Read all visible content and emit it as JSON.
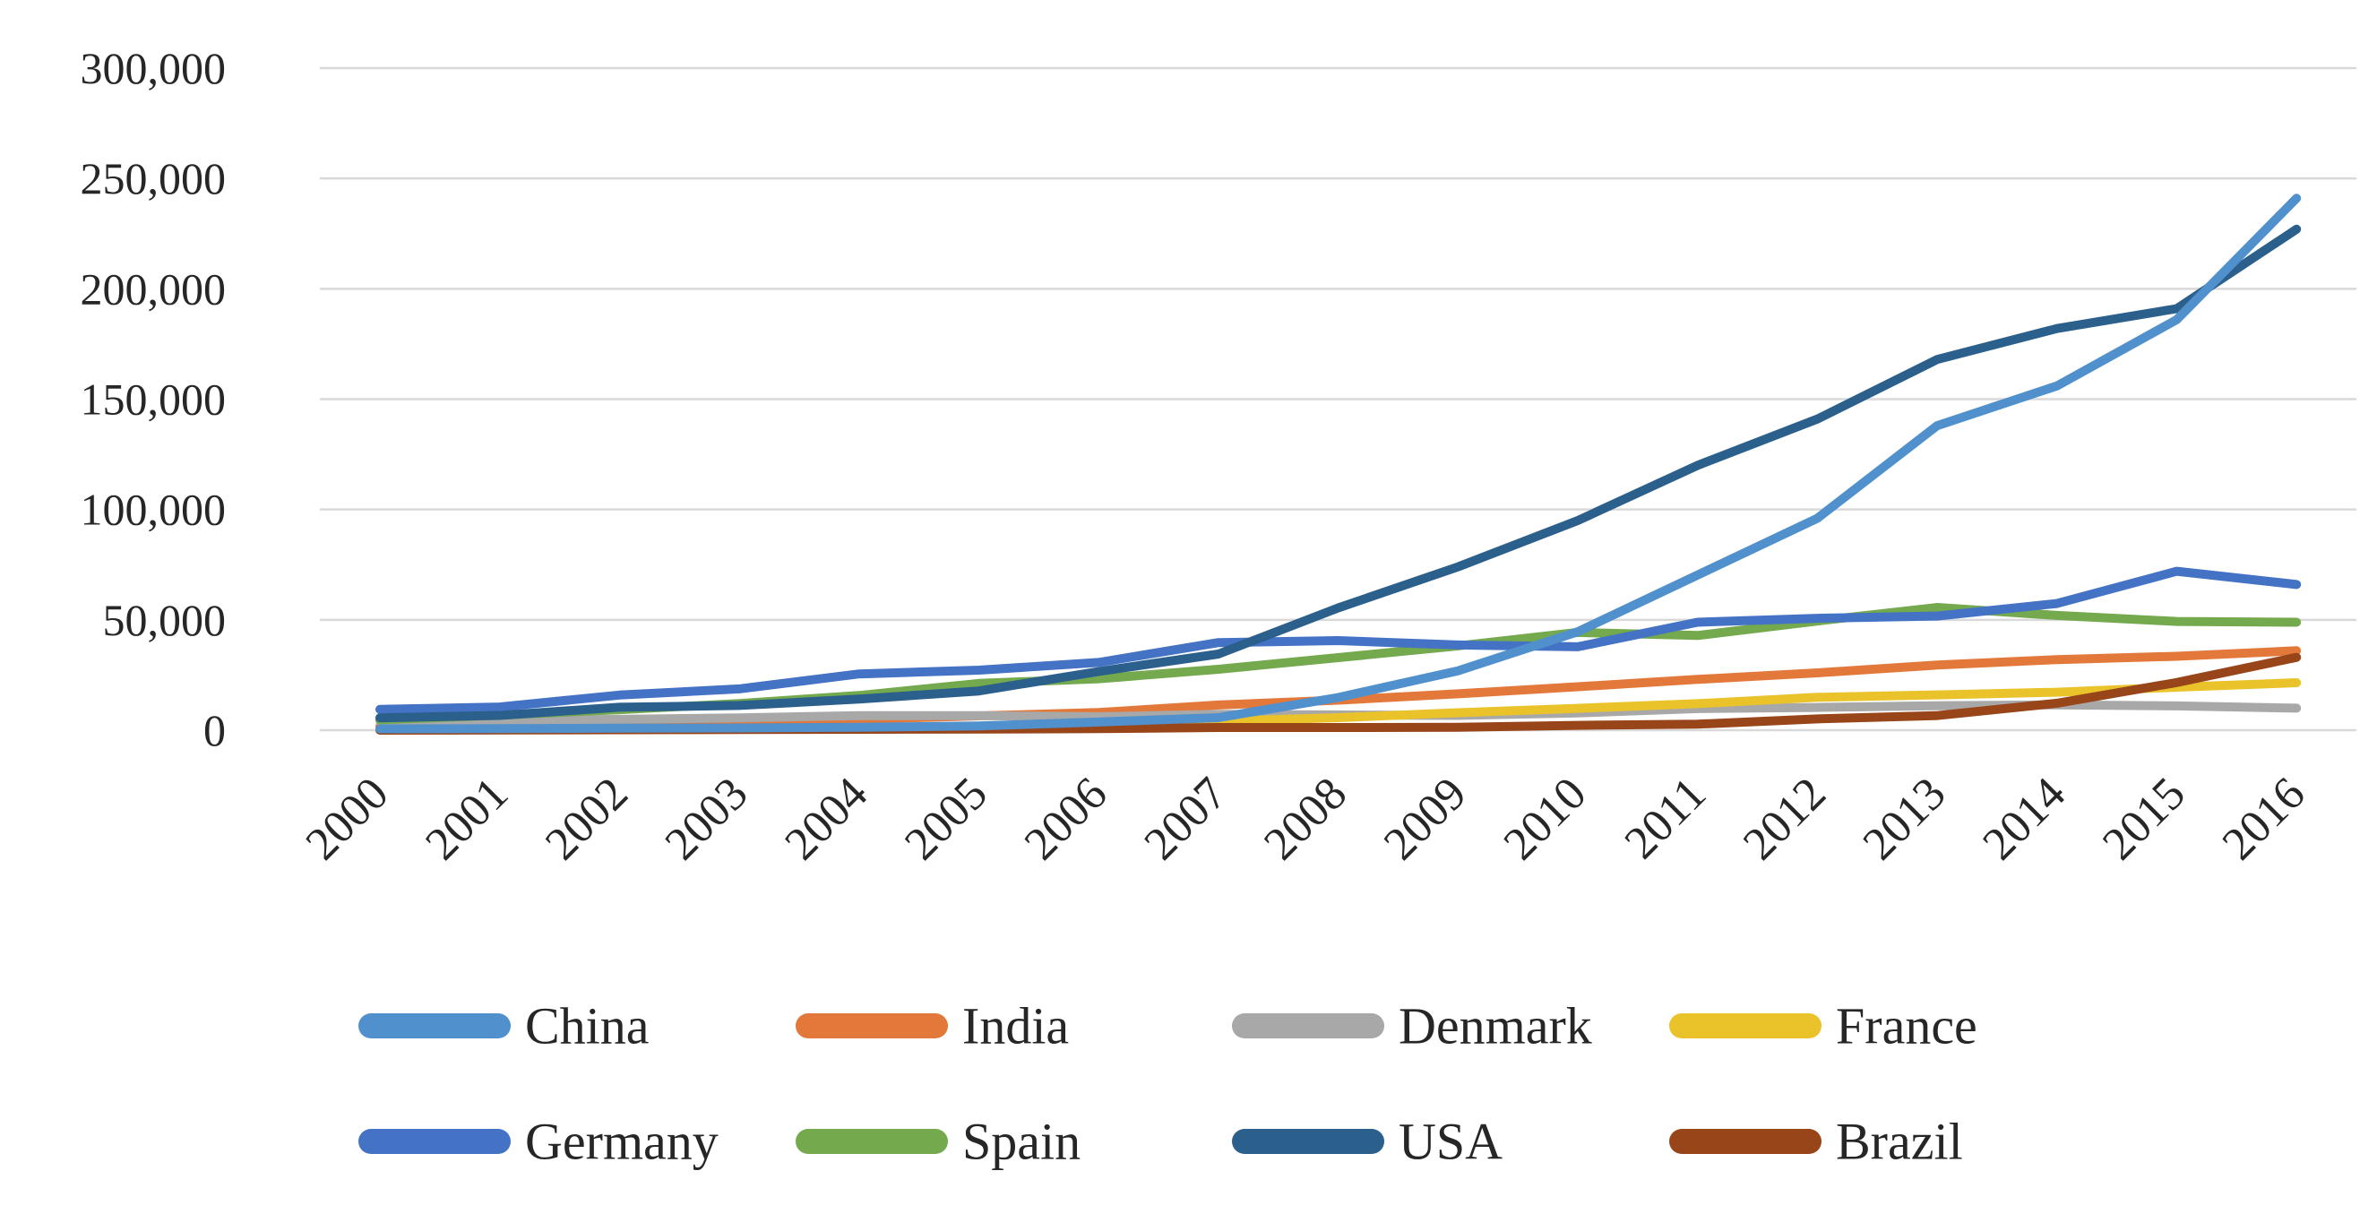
{
  "chart_data": {
    "type": "line",
    "title": "",
    "xlabel": "",
    "ylabel": "",
    "x_categories": [
      "2000",
      "2001",
      "2002",
      "2003",
      "2004",
      "2005",
      "2006",
      "2007",
      "2008",
      "2009",
      "2010",
      "2011",
      "2012",
      "2013",
      "2014",
      "2015",
      "2016"
    ],
    "y_axis": {
      "min": 0,
      "max": 300000,
      "step": 50000,
      "grid": true,
      "ticks": [
        {
          "value": 300000,
          "label": "300,000"
        },
        {
          "value": 250000,
          "label": "250,000"
        },
        {
          "value": 200000,
          "label": "200,000"
        },
        {
          "value": 150000,
          "label": "150,000"
        },
        {
          "value": 100000,
          "label": "100,000"
        },
        {
          "value": 50000,
          "label": "50,000"
        },
        {
          "value": 0,
          "label": "0"
        }
      ]
    },
    "series": [
      {
        "name": "China",
        "color": "#5090CC",
        "values": [
          600,
          700,
          900,
          1000,
          1300,
          1900,
          3700,
          5700,
          14800,
          26900,
          44600,
          70300,
          96000,
          138000,
          156000,
          186000,
          241000
        ]
      },
      {
        "name": "India",
        "color": "#E2793B",
        "values": [
          1700,
          2000,
          2100,
          3400,
          5000,
          6500,
          8000,
          11400,
          13600,
          16500,
          19700,
          23000,
          26000,
          29500,
          32000,
          33500,
          36000
        ]
      },
      {
        "name": "Denmark",
        "color": "#A8A8A8",
        "values": [
          4200,
          4300,
          4900,
          5600,
          6600,
          6600,
          6100,
          7200,
          6900,
          6700,
          7800,
          9800,
          10300,
          11100,
          11500,
          11000,
          10000
        ]
      },
      {
        "name": "France",
        "color": "#EAC32A",
        "values": [
          100,
          150,
          250,
          400,
          600,
          1000,
          2300,
          4100,
          5700,
          7900,
          9900,
          12000,
          14900,
          16000,
          17200,
          19500,
          21500
        ]
      },
      {
        "name": "Germany",
        "color": "#4472C4",
        "values": [
          9400,
          10500,
          15900,
          18700,
          25500,
          27200,
          30700,
          39700,
          40600,
          38600,
          37800,
          48900,
          50700,
          51700,
          57400,
          72000,
          66000
        ]
      },
      {
        "name": "Spain",
        "color": "#74A94E",
        "values": [
          4700,
          6800,
          9300,
          12100,
          15700,
          21200,
          23300,
          27600,
          32900,
          38200,
          44300,
          42900,
          49500,
          55600,
          52000,
          49300,
          48900
        ]
      },
      {
        "name": "USA",
        "color": "#2B5F8C",
        "values": [
          5600,
          6700,
          10400,
          11200,
          14100,
          17800,
          26600,
          34500,
          55400,
          74000,
          95000,
          120000,
          141000,
          168000,
          182000,
          191000,
          227000
        ]
      },
      {
        "name": "Brazil",
        "color": "#98451A",
        "values": [
          0,
          100,
          200,
          300,
          400,
          500,
          700,
          1200,
          1200,
          1300,
          2200,
          2700,
          5100,
          6600,
          12200,
          21600,
          33000
        ]
      }
    ],
    "draw_order": [
      "India",
      "Denmark",
      "France",
      "Spain",
      "Germany",
      "USA",
      "Brazil",
      "China"
    ],
    "legend": {
      "position": "bottom",
      "rows": [
        [
          "China",
          "India",
          "Denmark",
          "France"
        ],
        [
          "Germany",
          "Spain",
          "USA",
          "Brazil"
        ]
      ]
    }
  }
}
